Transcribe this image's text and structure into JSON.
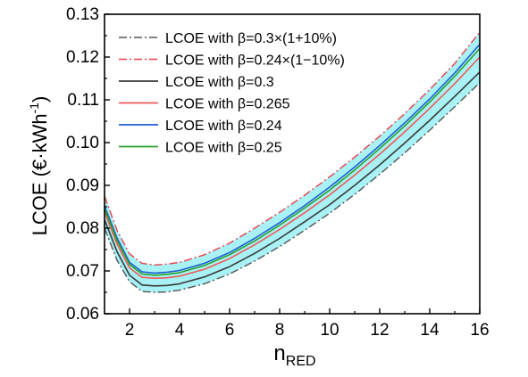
{
  "chart_data": {
    "type": "line",
    "title": "",
    "xlabel_main": "n",
    "xlabel_sub": "RED",
    "ylabel_main": "LCOE (€·kWh",
    "ylabel_sup": "-1",
    "ylabel_close": ")",
    "xlim": [
      1,
      16
    ],
    "ylim": [
      0.06,
      0.13
    ],
    "x_ticks": [
      2,
      4,
      6,
      8,
      10,
      12,
      14,
      16
    ],
    "y_ticks": [
      0.06,
      0.07,
      0.08,
      0.09,
      0.1,
      0.11,
      0.12,
      0.13
    ],
    "x_tick_labels": [
      "2",
      "4",
      "6",
      "8",
      "10",
      "12",
      "14",
      "16"
    ],
    "y_tick_labels": [
      "0.06",
      "0.07",
      "0.08",
      "0.09",
      "0.10",
      "0.11",
      "0.12",
      "0.13"
    ],
    "grid": false,
    "legend_position": "top-left",
    "band": {
      "between": [
        "LCOE with β=0.3×(1+10%)",
        "LCOE with β=0.24×(1−10%)"
      ],
      "color": "#a8f2f5"
    },
    "series": [
      {
        "name": "LCOE with β=0.3×(1+10%)",
        "color": "#555555",
        "dash": "dashdot",
        "x": [
          1,
          1.5,
          2,
          2.5,
          3,
          3.5,
          4,
          5,
          6,
          7,
          8,
          9,
          10,
          11,
          12,
          13,
          14,
          15,
          16
        ],
        "y": [
          0.08,
          0.0725,
          0.0675,
          0.0652,
          0.065,
          0.0651,
          0.0655,
          0.067,
          0.0693,
          0.0723,
          0.0757,
          0.0795,
          0.0835,
          0.0879,
          0.0926,
          0.0976,
          0.1029,
          0.1084,
          0.114
        ]
      },
      {
        "name": "LCOE with β=0.24×(1−10%)",
        "color": "#e8404a",
        "dash": "dashdot",
        "x": [
          1,
          1.5,
          2,
          2.5,
          3,
          3.5,
          4,
          5,
          6,
          7,
          8,
          9,
          10,
          11,
          12,
          13,
          14,
          15,
          16
        ],
        "y": [
          0.0875,
          0.0795,
          0.074,
          0.0718,
          0.0714,
          0.0716,
          0.072,
          0.0738,
          0.0765,
          0.08,
          0.0837,
          0.0877,
          0.092,
          0.0966,
          0.1015,
          0.1068,
          0.1124,
          0.1185,
          0.1258
        ]
      },
      {
        "name": "LCOE with β=0.3",
        "color": "#3a3a3a",
        "dash": "solid",
        "x": [
          1,
          1.5,
          2,
          2.5,
          3,
          3.5,
          4,
          5,
          6,
          7,
          8,
          9,
          10,
          11,
          12,
          13,
          14,
          15,
          16
        ],
        "y": [
          0.082,
          0.0745,
          0.069,
          0.0667,
          0.0665,
          0.0666,
          0.067,
          0.0686,
          0.071,
          0.0741,
          0.0776,
          0.0815,
          0.0855,
          0.09,
          0.0948,
          0.0999,
          0.1052,
          0.1108,
          0.1165
        ]
      },
      {
        "name": "LCOE with β=0.265",
        "color": "#ee5a5a",
        "dash": "solid",
        "x": [
          1,
          1.5,
          2,
          2.5,
          3,
          3.5,
          4,
          5,
          6,
          7,
          8,
          9,
          10,
          11,
          12,
          13,
          14,
          15,
          16
        ],
        "y": [
          0.0838,
          0.0763,
          0.0707,
          0.0685,
          0.0683,
          0.0684,
          0.0688,
          0.0704,
          0.0729,
          0.0761,
          0.0797,
          0.0836,
          0.0878,
          0.0924,
          0.0973,
          0.1025,
          0.108,
          0.1138,
          0.12
        ]
      },
      {
        "name": "LCOE with β=0.24",
        "color": "#1f5fd8",
        "dash": "solid",
        "x": [
          1,
          1.5,
          2,
          2.5,
          3,
          3.5,
          4,
          5,
          6,
          7,
          8,
          9,
          10,
          11,
          12,
          13,
          14,
          15,
          16
        ],
        "y": [
          0.0852,
          0.0777,
          0.072,
          0.0698,
          0.0695,
          0.0697,
          0.0701,
          0.0718,
          0.0743,
          0.0776,
          0.0813,
          0.0853,
          0.0896,
          0.0943,
          0.0993,
          0.1046,
          0.1102,
          0.1163,
          0.123
        ]
      },
      {
        "name": "LCOE with β=0.25",
        "color": "#2ca02c",
        "dash": "solid",
        "x": [
          1,
          1.5,
          2,
          2.5,
          3,
          3.5,
          4,
          5,
          6,
          7,
          8,
          9,
          10,
          11,
          12,
          13,
          14,
          15,
          16
        ],
        "y": [
          0.0846,
          0.0771,
          0.0715,
          0.0693,
          0.069,
          0.0692,
          0.0696,
          0.0713,
          0.0738,
          0.077,
          0.0807,
          0.0847,
          0.0889,
          0.0936,
          0.0986,
          0.1039,
          0.1095,
          0.1155,
          0.122
        ]
      }
    ]
  }
}
